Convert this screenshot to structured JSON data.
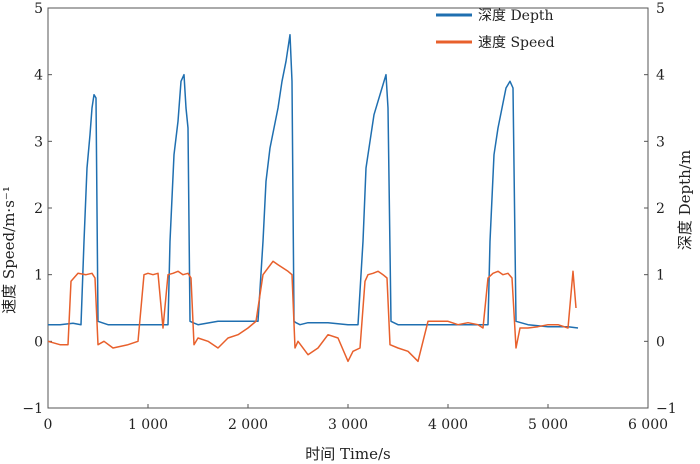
{
  "chart_data": {
    "type": "line",
    "xlabel": "时间 Time/s",
    "ylabel_left": "速度 Speed/m·s⁻¹",
    "ylabel_right": "深度 Depth/m",
    "xlim": [
      0,
      6000
    ],
    "ylim_left": [
      -1,
      5
    ],
    "ylim_right": [
      -1,
      5
    ],
    "x_ticks": [
      0,
      1000,
      2000,
      3000,
      4000,
      5000,
      6000
    ],
    "x_tick_labels": [
      "0",
      "1 000",
      "2 000",
      "3 000",
      "4 000",
      "5 000",
      "6 000"
    ],
    "y_ticks": [
      -1,
      0,
      1,
      2,
      3,
      4,
      5
    ],
    "y_tick_labels": [
      "−1",
      "0",
      "1",
      "2",
      "3",
      "4",
      "5"
    ],
    "grid": false,
    "legend_position": "top-right",
    "series": [
      {
        "name": "深度 Depth",
        "color": "#1f6fb0",
        "x": [
          0,
          120,
          250,
          330,
          360,
          390,
          420,
          440,
          460,
          480,
          500,
          540,
          600,
          800,
          1000,
          1150,
          1200,
          1220,
          1260,
          1300,
          1330,
          1360,
          1380,
          1400,
          1420,
          1450,
          1500,
          1700,
          1900,
          2100,
          2150,
          2180,
          2220,
          2260,
          2300,
          2340,
          2380,
          2420,
          2440,
          2460,
          2480,
          2520,
          2600,
          2800,
          3000,
          3100,
          3150,
          3180,
          3220,
          3260,
          3300,
          3340,
          3380,
          3400,
          3430,
          3500,
          3700,
          3900,
          4100,
          4300,
          4400,
          4420,
          4460,
          4500,
          4540,
          4580,
          4620,
          4650,
          4680,
          4800,
          5000,
          5200,
          5300
        ],
        "values": [
          0.25,
          0.25,
          0.27,
          0.25,
          1.5,
          2.6,
          3.1,
          3.5,
          3.7,
          3.65,
          0.3,
          0.28,
          0.25,
          0.25,
          0.25,
          0.25,
          0.25,
          1.5,
          2.8,
          3.3,
          3.9,
          4.0,
          3.5,
          3.2,
          0.3,
          0.28,
          0.25,
          0.3,
          0.3,
          0.3,
          1.5,
          2.4,
          2.9,
          3.2,
          3.5,
          3.9,
          4.2,
          4.6,
          3.9,
          0.3,
          0.28,
          0.25,
          0.28,
          0.28,
          0.25,
          0.25,
          1.5,
          2.6,
          3.0,
          3.4,
          3.6,
          3.8,
          4.0,
          3.5,
          0.3,
          0.25,
          0.25,
          0.25,
          0.25,
          0.25,
          0.25,
          1.5,
          2.8,
          3.2,
          3.5,
          3.8,
          3.9,
          3.8,
          0.3,
          0.25,
          0.22,
          0.22,
          0.2
        ]
      },
      {
        "name": "速度 Speed",
        "color": "#e8602c",
        "x": [
          0,
          120,
          200,
          230,
          300,
          380,
          440,
          470,
          500,
          560,
          650,
          800,
          900,
          960,
          1000,
          1050,
          1100,
          1150,
          1200,
          1250,
          1300,
          1350,
          1400,
          1430,
          1460,
          1500,
          1600,
          1700,
          1800,
          1900,
          2000,
          2080,
          2150,
          2200,
          2250,
          2300,
          2350,
          2400,
          2440,
          2470,
          2500,
          2600,
          2700,
          2800,
          2900,
          3000,
          3050,
          3120,
          3170,
          3200,
          3250,
          3300,
          3350,
          3390,
          3420,
          3500,
          3600,
          3700,
          3800,
          3900,
          4000,
          4100,
          4200,
          4300,
          4350,
          4400,
          4450,
          4500,
          4550,
          4600,
          4640,
          4680,
          4720,
          4800,
          4900,
          5000,
          5100,
          5200,
          5250,
          5280
        ],
        "values": [
          0.0,
          -0.05,
          -0.05,
          0.9,
          1.02,
          1.0,
          1.02,
          0.95,
          -0.05,
          0.0,
          -0.1,
          -0.05,
          0.0,
          1.0,
          1.02,
          1.0,
          1.02,
          0.2,
          1.0,
          1.02,
          1.05,
          1.0,
          1.02,
          0.95,
          -0.05,
          0.05,
          0.0,
          -0.1,
          0.05,
          0.1,
          0.2,
          0.3,
          1.0,
          1.1,
          1.2,
          1.15,
          1.1,
          1.05,
          1.0,
          -0.1,
          0.0,
          -0.2,
          -0.1,
          0.1,
          0.05,
          -0.3,
          -0.15,
          -0.1,
          0.9,
          1.0,
          1.02,
          1.05,
          1.0,
          0.95,
          -0.05,
          -0.1,
          -0.15,
          -0.3,
          0.3,
          0.3,
          0.3,
          0.25,
          0.28,
          0.25,
          0.2,
          0.95,
          1.02,
          1.05,
          1.0,
          1.02,
          0.95,
          -0.1,
          0.2,
          0.2,
          0.22,
          0.25,
          0.25,
          0.2,
          1.05,
          0.5
        ]
      }
    ]
  }
}
